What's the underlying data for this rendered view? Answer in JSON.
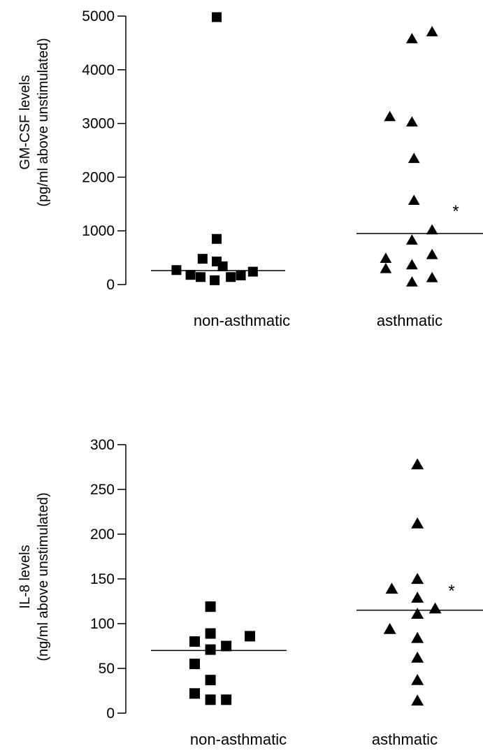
{
  "colors": {
    "marker": "#000000",
    "axis": "#000000",
    "background": "#ffffff"
  },
  "chart_data": [
    {
      "type": "scatter",
      "title": "",
      "ylabel_lines": [
        "GM-CSF  levels",
        "(pg/ml above unstimulated)"
      ],
      "ylim": [
        0,
        5000
      ],
      "yticks": [
        0,
        1000,
        2000,
        3000,
        4000,
        5000
      ],
      "categories": [
        "non-asthmatic",
        "asthmatic"
      ],
      "grid": false,
      "series": [
        {
          "category": "non-asthmatic",
          "marker": "square",
          "points": [
            {
              "offset": -0.2,
              "y": 270
            },
            {
              "offset": -0.13,
              "y": 180
            },
            {
              "offset": -0.08,
              "y": 140
            },
            {
              "offset": -0.07,
              "y": 480
            },
            {
              "offset": -0.01,
              "y": 80
            },
            {
              "offset": 0.0,
              "y": 850
            },
            {
              "offset": 0.0,
              "y": 430
            },
            {
              "offset": 0.03,
              "y": 340
            },
            {
              "offset": 0.07,
              "y": 140
            },
            {
              "offset": 0.12,
              "y": 170
            },
            {
              "offset": 0.18,
              "y": 240
            },
            {
              "offset": 0.0,
              "y": 4980
            }
          ],
          "median": 260
        },
        {
          "category": "asthmatic",
          "marker": "triangle",
          "points": [
            {
              "offset": -0.14,
              "y": 3130
            },
            {
              "offset": -0.16,
              "y": 490
            },
            {
              "offset": -0.16,
              "y": 300
            },
            {
              "offset": -0.03,
              "y": 4580
            },
            {
              "offset": -0.03,
              "y": 3030
            },
            {
              "offset": -0.02,
              "y": 2350
            },
            {
              "offset": -0.02,
              "y": 1570
            },
            {
              "offset": -0.03,
              "y": 830
            },
            {
              "offset": -0.03,
              "y": 370
            },
            {
              "offset": -0.03,
              "y": 50
            },
            {
              "offset": 0.07,
              "y": 4710
            },
            {
              "offset": 0.07,
              "y": 1020
            },
            {
              "offset": 0.07,
              "y": 560
            },
            {
              "offset": 0.07,
              "y": 130
            }
          ],
          "median": 950
        }
      ],
      "annotation": "*"
    },
    {
      "type": "scatter",
      "title": "",
      "ylabel_lines": [
        "IL-8 levels",
        "(ng/ml above unstimulated)"
      ],
      "ylim": [
        0,
        300
      ],
      "yticks": [
        0,
        50,
        100,
        150,
        200,
        250,
        300
      ],
      "categories": [
        "non-asthmatic",
        "asthmatic"
      ],
      "grid": false,
      "series": [
        {
          "category": "non-asthmatic",
          "marker": "square",
          "points": [
            {
              "offset": -0.14,
              "y": 80
            },
            {
              "offset": -0.14,
              "y": 55
            },
            {
              "offset": -0.14,
              "y": 22
            },
            {
              "offset": -0.06,
              "y": 119
            },
            {
              "offset": -0.06,
              "y": 89
            },
            {
              "offset": -0.06,
              "y": 71
            },
            {
              "offset": -0.06,
              "y": 37
            },
            {
              "offset": -0.06,
              "y": 15
            },
            {
              "offset": 0.02,
              "y": 75
            },
            {
              "offset": 0.02,
              "y": 15
            },
            {
              "offset": 0.14,
              "y": 86
            }
          ],
          "median": 70
        },
        {
          "category": "asthmatic",
          "marker": "triangle",
          "points": [
            {
              "offset": -0.14,
              "y": 139
            },
            {
              "offset": -0.15,
              "y": 94
            },
            {
              "offset": -0.01,
              "y": 278
            },
            {
              "offset": -0.01,
              "y": 212
            },
            {
              "offset": -0.01,
              "y": 150
            },
            {
              "offset": -0.01,
              "y": 129
            },
            {
              "offset": -0.01,
              "y": 111
            },
            {
              "offset": -0.01,
              "y": 84
            },
            {
              "offset": -0.01,
              "y": 62
            },
            {
              "offset": -0.01,
              "y": 37
            },
            {
              "offset": -0.01,
              "y": 14
            },
            {
              "offset": 0.08,
              "y": 117
            }
          ],
          "median": 115
        }
      ],
      "annotation": "*"
    }
  ]
}
